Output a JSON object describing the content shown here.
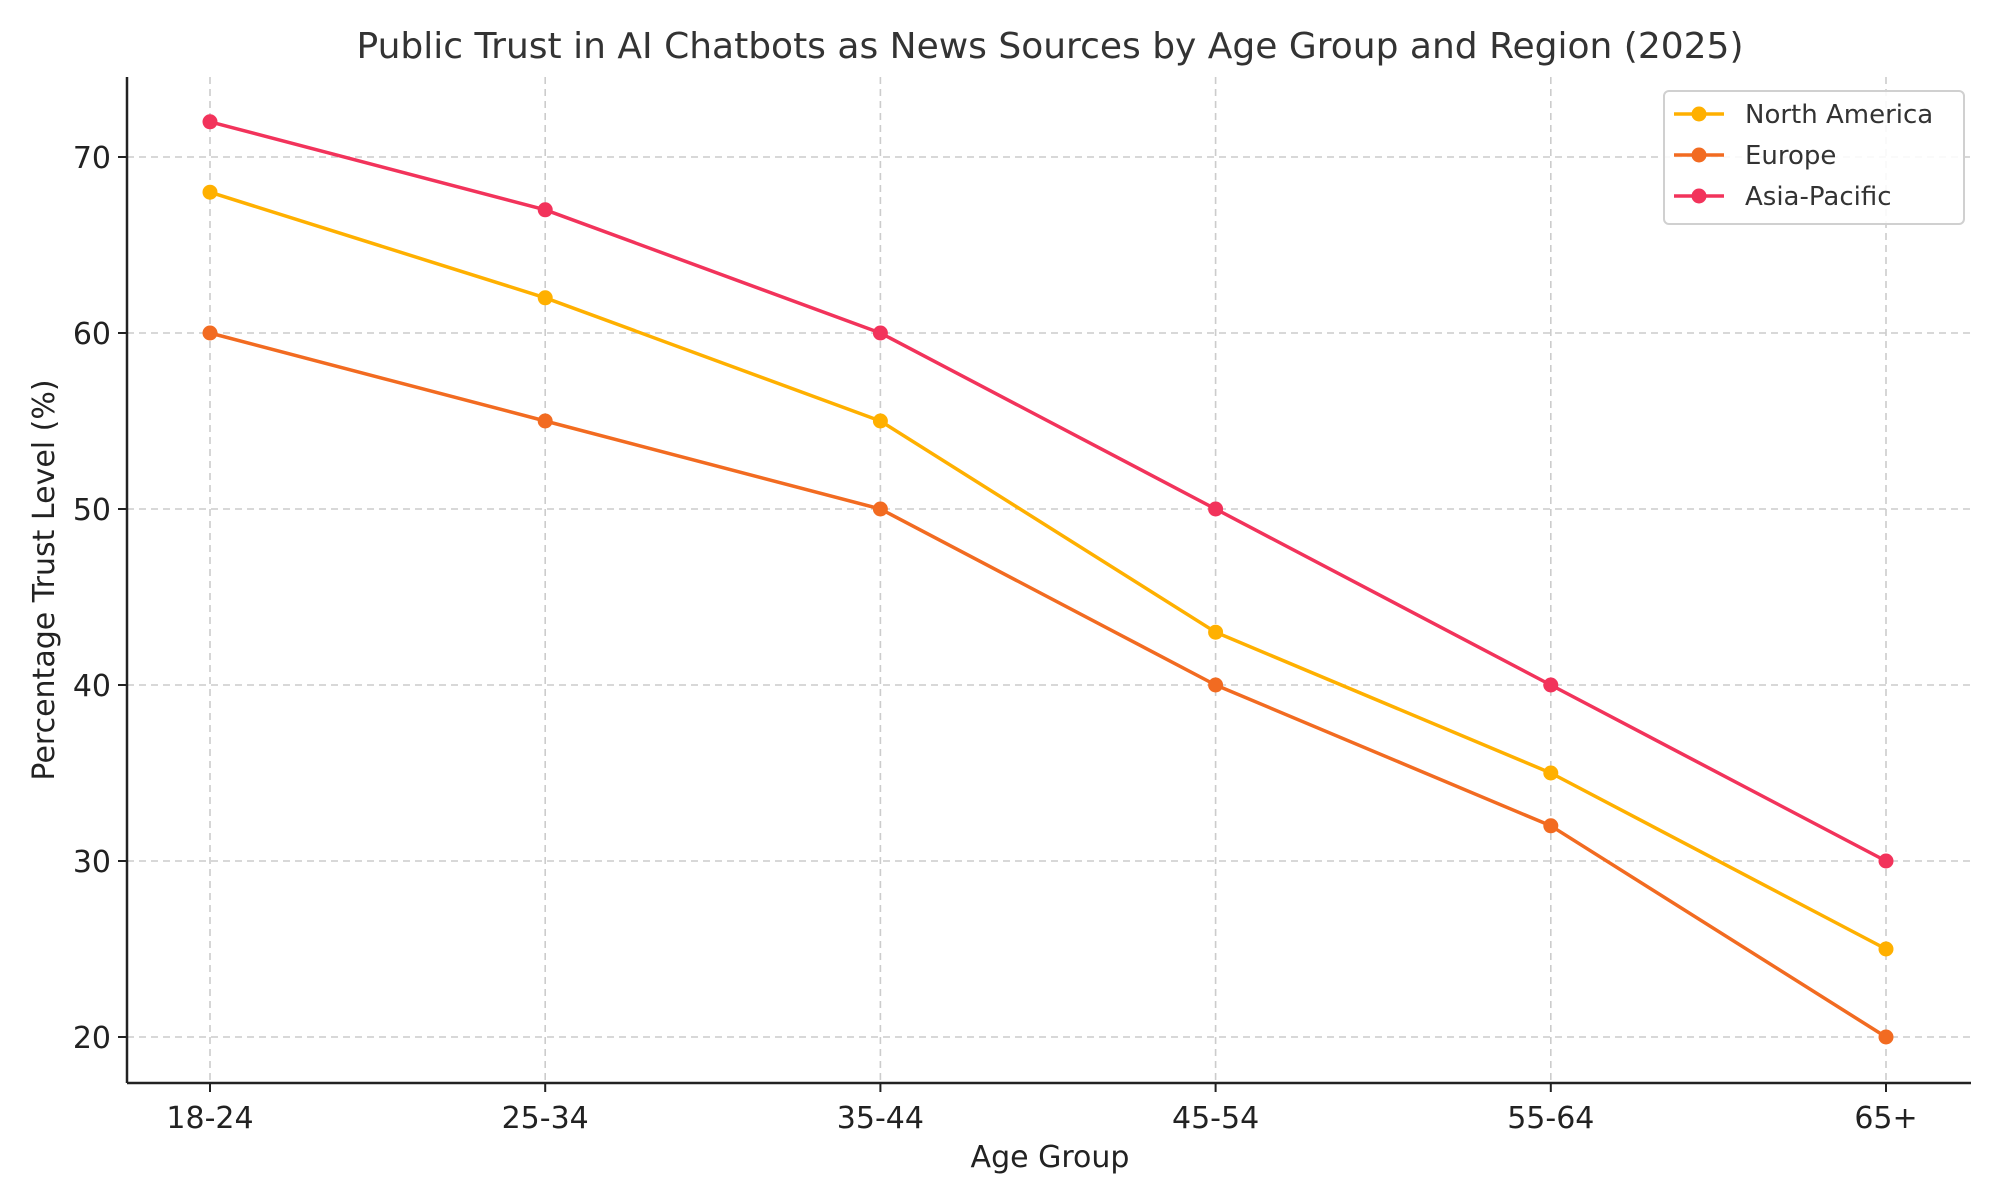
{
  "chart_data": {
    "type": "line",
    "title": "Public Trust in AI Chatbots as News Sources by Age Group and Region (2025)",
    "xlabel": "Age Group",
    "ylabel": "Percentage Trust Level (%)",
    "categories": [
      "18-24",
      "25-34",
      "35-44",
      "45-54",
      "55-64",
      "65+"
    ],
    "series": [
      {
        "name": "North America",
        "color": "#FFB000",
        "values": [
          68,
          62,
          55,
          43,
          35,
          25
        ]
      },
      {
        "name": "Europe",
        "color": "#F26B21",
        "values": [
          60,
          55,
          50,
          40,
          32,
          20
        ]
      },
      {
        "name": "Asia-Pacific",
        "color": "#F2335B",
        "values": [
          72,
          67,
          60,
          50,
          40,
          30
        ]
      }
    ],
    "yticks": [
      20,
      30,
      40,
      50,
      60,
      70
    ],
    "ylim": [
      17.4,
      74.6
    ],
    "grid": true,
    "legend_position": "upper right"
  }
}
